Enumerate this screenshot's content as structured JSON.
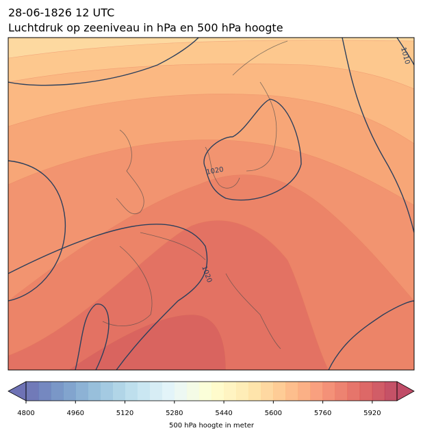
{
  "header": {
    "date": "28-06-1826 12 UTC",
    "title": "Luchtdruk op zeeniveau in hPa en 500 hPa hoogte"
  },
  "map": {
    "contour_labels": [
      "1010",
      "1020",
      "1020"
    ]
  },
  "colorbar": {
    "range": [
      4800,
      6000
    ],
    "step": 40,
    "ticks": [
      4800,
      4960,
      5120,
      5280,
      5440,
      5600,
      5760,
      5920
    ],
    "label": "500 hPa hoogte in meter"
  }
}
